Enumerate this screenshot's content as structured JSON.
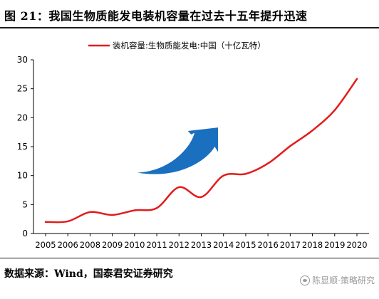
{
  "figure": {
    "title": "图 21：我国生物质能发电装机容量在过去十五年提升迅速",
    "source": "数据来源：Wind，国泰君安证券研究",
    "watermark": "陈显顺·策略研究"
  },
  "colors": {
    "series_line": "#e31c1c",
    "arrow": "#1a6fbf",
    "axis": "#000000",
    "rule": "#1f1f1f"
  },
  "chart_data": {
    "type": "line",
    "title": "",
    "xlabel": "",
    "ylabel": "",
    "ylim": [
      0,
      30
    ],
    "yticks": [
      0,
      5,
      10,
      15,
      20,
      25,
      30
    ],
    "xticks": [
      "2005",
      "2006",
      "2008",
      "2009",
      "2010",
      "2011",
      "2012",
      "2013",
      "2014",
      "2015",
      "2016",
      "2017",
      "2018",
      "2019",
      "2020"
    ],
    "legend_position": "top-center",
    "grid": false,
    "series": [
      {
        "name": "装机容量:生物质能发电:中国（十亿瓦特）",
        "x": [
          0,
          1,
          2,
          3,
          4,
          5,
          6,
          7,
          8,
          9,
          10,
          11,
          12,
          13,
          14
        ],
        "values": [
          2.0,
          2.1,
          3.7,
          3.2,
          4.0,
          4.4,
          8.0,
          6.3,
          10.0,
          10.3,
          12.1,
          15.1,
          17.8,
          21.3,
          26.7
        ]
      }
    ],
    "annotations": [
      {
        "type": "arrow",
        "direction": "up-right",
        "meaning": "rising trend"
      }
    ]
  }
}
